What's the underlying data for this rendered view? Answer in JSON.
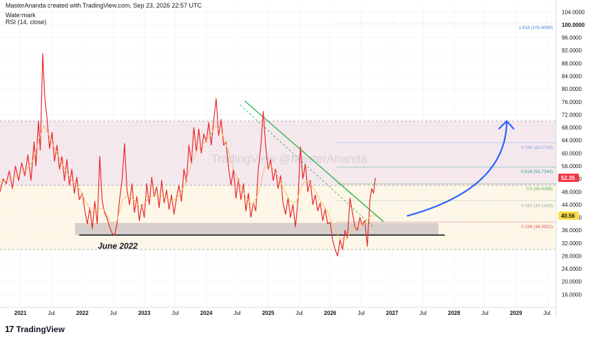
{
  "header": {
    "attribution": "MasterAnanda created with TradingView.com, Sep 23, 2026 22:57 UTC",
    "watermark_label": "Watermark",
    "indicator": "RSI (14, close)"
  },
  "brand": {
    "name": "TradingView",
    "logo_glyph": "17"
  },
  "watermark_text": "TradingView @MasterAnanda",
  "annotation_label": "June 2022",
  "colors": {
    "rsi_line": "#e8262b",
    "rsi_ma": "#f2c36b",
    "trendline": "#2db34a",
    "arrow": "#2962ff",
    "zone_top": "#f3e4ea",
    "zone_bottom": "#fdf4df",
    "support_box": "#c9c2c2",
    "price_badge_red": "#f23645",
    "price_badge_yellow": "#fddd43"
  },
  "chart_data": {
    "type": "line",
    "title": "",
    "xlabel": "",
    "ylabel": "",
    "ylim": [
      12,
      104
    ],
    "xlim": [
      2020.67,
      2029.65
    ],
    "grid": true,
    "y_ticks": [
      "104.0000",
      "100.0000",
      "96.0000",
      "92.0000",
      "88.0000",
      "84.0000",
      "80.0000",
      "76.0000",
      "72.0000",
      "68.0000",
      "64.0000",
      "60.0000",
      "56.0000",
      "52.0000",
      "48.0000",
      "44.0000",
      "40.0000",
      "36.0000",
      "32.0000",
      "28.0000",
      "24.0000",
      "20.0000",
      "16.0000"
    ],
    "y_tick_values": [
      104,
      100,
      96,
      92,
      88,
      84,
      80,
      76,
      72,
      68,
      64,
      60,
      56,
      52,
      48,
      44,
      40,
      36,
      32,
      28,
      24,
      20,
      16
    ],
    "x_ticks": [
      {
        "label": "2021",
        "x": 2021.0
      },
      {
        "label": "Jul",
        "x": 2021.5
      },
      {
        "label": "2022",
        "x": 2022.0
      },
      {
        "label": "Jul",
        "x": 2022.5
      },
      {
        "label": "2023",
        "x": 2023.0
      },
      {
        "label": "Jul",
        "x": 2023.5
      },
      {
        "label": "2024",
        "x": 2024.0
      },
      {
        "label": "Jul",
        "x": 2024.5
      },
      {
        "label": "2025",
        "x": 2025.0
      },
      {
        "label": "Jul",
        "x": 2025.5
      },
      {
        "label": "2026",
        "x": 2026.0
      },
      {
        "label": "Jul",
        "x": 2026.5
      },
      {
        "label": "2027",
        "x": 2027.0
      },
      {
        "label": "Jul",
        "x": 2027.5
      },
      {
        "label": "2028",
        "x": 2028.0
      },
      {
        "label": "Jul",
        "x": 2028.5
      },
      {
        "label": "2029",
        "x": 2029.0
      },
      {
        "label": "Jul",
        "x": 2029.5
      }
    ],
    "series": [
      {
        "values": [
          [
            2020.67,
            48.0
          ],
          [
            2020.72,
            52.0
          ],
          [
            2020.77,
            50.5
          ],
          [
            2020.82,
            54.5
          ],
          [
            2020.87,
            49.0
          ],
          [
            2020.92,
            56.0
          ],
          [
            2020.97,
            51.5
          ],
          [
            2021.02,
            57.0
          ],
          [
            2021.07,
            53.0
          ],
          [
            2021.12,
            59.5
          ],
          [
            2021.17,
            51.5
          ],
          [
            2021.22,
            63.5
          ],
          [
            2021.25,
            56.0
          ],
          [
            2021.29,
            70.0
          ],
          [
            2021.32,
            61.0
          ],
          [
            2021.36,
            91.0
          ],
          [
            2021.39,
            78.0
          ],
          [
            2021.43,
            70.5
          ],
          [
            2021.47,
            61.5
          ],
          [
            2021.51,
            66.5
          ],
          [
            2021.55,
            57.5
          ],
          [
            2021.59,
            62.5
          ],
          [
            2021.63,
            55.0
          ],
          [
            2021.67,
            59.0
          ],
          [
            2021.71,
            51.5
          ],
          [
            2021.75,
            58.0
          ],
          [
            2021.79,
            50.0
          ],
          [
            2021.83,
            55.0
          ],
          [
            2021.87,
            47.5
          ],
          [
            2021.91,
            52.5
          ],
          [
            2021.95,
            45.5
          ],
          [
            2022.0,
            47.5
          ],
          [
            2022.04,
            42.0
          ],
          [
            2022.08,
            38.0
          ],
          [
            2022.12,
            43.0
          ],
          [
            2022.16,
            36.5
          ],
          [
            2022.2,
            45.0
          ],
          [
            2022.24,
            38.0
          ],
          [
            2022.28,
            59.0
          ],
          [
            2022.32,
            45.0
          ],
          [
            2022.36,
            41.5
          ],
          [
            2022.4,
            39.5
          ],
          [
            2022.44,
            37.0
          ],
          [
            2022.48,
            35.0
          ],
          [
            2022.52,
            34.5
          ],
          [
            2022.56,
            38.0
          ],
          [
            2022.6,
            45.5
          ],
          [
            2022.64,
            51.5
          ],
          [
            2022.68,
            63.0
          ],
          [
            2022.72,
            48.5
          ],
          [
            2022.76,
            44.0
          ],
          [
            2022.8,
            50.5
          ],
          [
            2022.84,
            41.5
          ],
          [
            2022.88,
            46.5
          ],
          [
            2022.92,
            39.0
          ],
          [
            2022.96,
            44.0
          ],
          [
            2023.0,
            40.0
          ],
          [
            2023.04,
            50.5
          ],
          [
            2023.08,
            44.0
          ],
          [
            2023.12,
            52.5
          ],
          [
            2023.16,
            46.5
          ],
          [
            2023.2,
            49.5
          ],
          [
            2023.24,
            43.0
          ],
          [
            2023.28,
            51.5
          ],
          [
            2023.32,
            44.5
          ],
          [
            2023.36,
            48.5
          ],
          [
            2023.4,
            42.5
          ],
          [
            2023.44,
            47.0
          ],
          [
            2023.48,
            41.0
          ],
          [
            2023.52,
            46.0
          ],
          [
            2023.56,
            50.0
          ],
          [
            2023.6,
            45.0
          ],
          [
            2023.64,
            55.0
          ],
          [
            2023.68,
            51.0
          ],
          [
            2023.72,
            62.5
          ],
          [
            2023.76,
            57.0
          ],
          [
            2023.8,
            68.0
          ],
          [
            2023.84,
            60.5
          ],
          [
            2023.88,
            67.5
          ],
          [
            2023.92,
            60.0
          ],
          [
            2023.96,
            66.0
          ],
          [
            2024.0,
            63.5
          ],
          [
            2024.04,
            69.5
          ],
          [
            2024.08,
            62.5
          ],
          [
            2024.12,
            70.0
          ],
          [
            2024.16,
            77.0
          ],
          [
            2024.2,
            65.5
          ],
          [
            2024.24,
            70.5
          ],
          [
            2024.28,
            62.5
          ],
          [
            2024.32,
            63.5
          ],
          [
            2024.36,
            55.5
          ],
          [
            2024.4,
            50.0
          ],
          [
            2024.44,
            55.0
          ],
          [
            2024.48,
            46.0
          ],
          [
            2024.52,
            52.0
          ],
          [
            2024.56,
            45.5
          ],
          [
            2024.6,
            50.5
          ],
          [
            2024.64,
            42.0
          ],
          [
            2024.68,
            47.5
          ],
          [
            2024.72,
            40.0
          ],
          [
            2024.76,
            44.5
          ],
          [
            2024.8,
            42.0
          ],
          [
            2024.84,
            55.0
          ],
          [
            2024.88,
            62.0
          ],
          [
            2024.92,
            73.0
          ],
          [
            2024.96,
            62.0
          ],
          [
            2025.0,
            55.0
          ],
          [
            2025.04,
            58.0
          ],
          [
            2025.08,
            51.5
          ],
          [
            2025.12,
            55.0
          ],
          [
            2025.16,
            49.0
          ],
          [
            2025.2,
            53.0
          ],
          [
            2025.24,
            44.5
          ],
          [
            2025.28,
            41.0
          ],
          [
            2025.32,
            46.0
          ],
          [
            2025.36,
            40.0
          ],
          [
            2025.4,
            44.0
          ],
          [
            2025.44,
            37.0
          ],
          [
            2025.48,
            45.0
          ],
          [
            2025.52,
            62.0
          ],
          [
            2025.56,
            52.0
          ],
          [
            2025.6,
            56.5
          ],
          [
            2025.64,
            48.0
          ],
          [
            2025.68,
            51.5
          ],
          [
            2025.72,
            44.0
          ],
          [
            2025.76,
            47.0
          ],
          [
            2025.8,
            42.0
          ],
          [
            2025.84,
            44.5
          ],
          [
            2025.88,
            39.0
          ],
          [
            2025.92,
            42.5
          ],
          [
            2025.96,
            38.0
          ],
          [
            2026.0,
            38.5
          ],
          [
            2026.04,
            33.0
          ],
          [
            2026.08,
            30.0
          ],
          [
            2026.12,
            28.0
          ],
          [
            2026.16,
            33.0
          ],
          [
            2026.2,
            30.0
          ],
          [
            2026.24,
            36.0
          ],
          [
            2026.28,
            33.5
          ],
          [
            2026.32,
            46.0
          ],
          [
            2026.36,
            41.5
          ],
          [
            2026.4,
            37.0
          ],
          [
            2026.44,
            36.0
          ],
          [
            2026.48,
            40.0
          ],
          [
            2026.52,
            37.5
          ],
          [
            2026.56,
            39.0
          ],
          [
            2026.6,
            31.0
          ],
          [
            2026.64,
            45.0
          ],
          [
            2026.67,
            49.0
          ],
          [
            2026.7,
            47.5
          ],
          [
            2026.73,
            52.35
          ]
        ]
      },
      {
        "values": [
          [
            2020.67,
            51.0
          ],
          [
            2020.8,
            51.5
          ],
          [
            2020.95,
            53.0
          ],
          [
            2021.1,
            55.0
          ],
          [
            2021.2,
            57.5
          ],
          [
            2021.3,
            64.5
          ],
          [
            2021.38,
            68.5
          ],
          [
            2021.45,
            66.0
          ],
          [
            2021.55,
            61.5
          ],
          [
            2021.65,
            57.5
          ],
          [
            2021.75,
            54.0
          ],
          [
            2021.85,
            51.0
          ],
          [
            2021.95,
            49.0
          ],
          [
            2022.05,
            45.0
          ],
          [
            2022.15,
            41.5
          ],
          [
            2022.25,
            43.0
          ],
          [
            2022.35,
            42.5
          ],
          [
            2022.45,
            38.5
          ],
          [
            2022.55,
            38.5
          ],
          [
            2022.65,
            45.5
          ],
          [
            2022.75,
            47.0
          ],
          [
            2022.85,
            45.0
          ],
          [
            2022.95,
            43.0
          ],
          [
            2023.05,
            45.5
          ],
          [
            2023.15,
            47.0
          ],
          [
            2023.25,
            47.0
          ],
          [
            2023.35,
            46.0
          ],
          [
            2023.45,
            45.0
          ],
          [
            2023.55,
            46.5
          ],
          [
            2023.65,
            50.0
          ],
          [
            2023.75,
            56.0
          ],
          [
            2023.85,
            61.0
          ],
          [
            2023.95,
            63.0
          ],
          [
            2024.05,
            65.0
          ],
          [
            2024.15,
            68.5
          ],
          [
            2024.25,
            66.5
          ],
          [
            2024.35,
            61.0
          ],
          [
            2024.45,
            54.5
          ],
          [
            2024.55,
            50.0
          ],
          [
            2024.65,
            46.0
          ],
          [
            2024.75,
            43.5
          ],
          [
            2024.85,
            48.0
          ],
          [
            2024.95,
            56.0
          ],
          [
            2025.05,
            56.0
          ],
          [
            2025.15,
            53.0
          ],
          [
            2025.25,
            49.0
          ],
          [
            2025.35,
            45.0
          ],
          [
            2025.45,
            44.5
          ],
          [
            2025.55,
            50.5
          ],
          [
            2025.65,
            51.5
          ],
          [
            2025.75,
            48.5
          ],
          [
            2025.85,
            45.0
          ],
          [
            2025.95,
            42.0
          ],
          [
            2026.05,
            37.5
          ],
          [
            2026.15,
            33.5
          ],
          [
            2026.25,
            33.0
          ],
          [
            2026.35,
            36.0
          ],
          [
            2026.45,
            37.5
          ],
          [
            2026.55,
            38.0
          ],
          [
            2026.65,
            40.5
          ],
          [
            2026.73,
            40.56
          ]
        ]
      }
    ],
    "bands": [
      {
        "from": 30.0,
        "to": 50.0
      },
      {
        "from": 50.0,
        "to": 70.0
      }
    ],
    "support_box": {
      "x0": 2021.88,
      "x1": 2027.75,
      "y0": 34.5,
      "y1": 38.3
    },
    "support_line": {
      "x0": 2021.95,
      "x1": 2027.85,
      "y": 34.5
    },
    "trendlines": [
      {
        "x0": 2024.62,
        "y0": 76.3,
        "x1": 2026.86,
        "y1": 38.7
      },
      {
        "x0": 2024.55,
        "y0": 75.0,
        "x1": 2026.7,
        "y1": 37.0
      }
    ],
    "fib_levels": [
      {
        "label": "1.618 (100.6069)",
        "value": 100.6069,
        "color": "#4a7fd6"
      },
      {
        "label": "0.786 (63.2730)",
        "value": 63.273,
        "color": "#7fa8e0"
      },
      {
        "label": "0.618 (55.7344)",
        "value": 55.7344,
        "color": "#2d9a8a"
      },
      {
        "label": "0.5 (50.4396)",
        "value": 50.4396,
        "color": "#4caf50"
      },
      {
        "label": "0.382 (45.1445)",
        "value": 45.1445,
        "color": "#8fb39a"
      },
      {
        "label": "0.236 (38.5931)",
        "value": 38.5931,
        "color": "#e05050"
      }
    ],
    "price_badges": [
      {
        "label": "52.35",
        "value": 52.35
      },
      {
        "label": "40.56",
        "value": 40.56
      }
    ],
    "arrow": {
      "from": [
        2027.25,
        40.5
      ],
      "ctrl": [
        2028.85,
        49.0
      ],
      "to": [
        2028.85,
        70.0
      ]
    }
  }
}
